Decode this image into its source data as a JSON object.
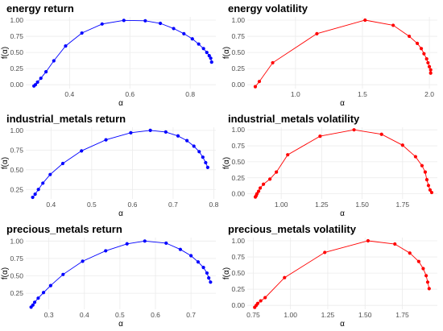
{
  "chart_data": [
    {
      "type": "line",
      "title": "energy return",
      "xlabel": "α",
      "ylabel": "f(α)",
      "color": "#0000ff",
      "xlim": [
        0.255,
        0.885
      ],
      "ylim": [
        -0.06,
        1.05
      ],
      "xticks": [
        0.4,
        0.6,
        0.8
      ],
      "xtick_labels": [
        "0.4",
        "0.6",
        "0.8"
      ],
      "yticks": [
        0,
        0.25,
        0.5,
        0.75,
        1.0
      ],
      "ytick_labels": [
        "0.00",
        "0.25",
        "0.50",
        "0.75",
        "1.00"
      ],
      "x": [
        0.282,
        0.287,
        0.294,
        0.305,
        0.322,
        0.348,
        0.387,
        0.441,
        0.508,
        0.58,
        0.651,
        0.701,
        0.745,
        0.779,
        0.807,
        0.828,
        0.844,
        0.855,
        0.863,
        0.868,
        0.871
      ],
      "y": [
        -0.02,
        0.0,
        0.04,
        0.1,
        0.2,
        0.37,
        0.6,
        0.8,
        0.94,
        0.996,
        0.99,
        0.95,
        0.87,
        0.79,
        0.71,
        0.63,
        0.56,
        0.5,
        0.45,
        0.41,
        0.35
      ]
    },
    {
      "type": "line",
      "title": "energy volatility",
      "xlabel": "α",
      "ylabel": "f(α)",
      "color": "#ff0000",
      "xlim": [
        0.64,
        2.06
      ],
      "ylim": [
        -0.06,
        1.05
      ],
      "xticks": [
        1.0,
        1.5,
        2.0
      ],
      "xtick_labels": [
        "1.0",
        "1.5",
        "2.0"
      ],
      "yticks": [
        0,
        0.25,
        0.5,
        0.75,
        1.0
      ],
      "ytick_labels": [
        "0.00",
        "0.25",
        "0.50",
        "0.75",
        "1.00"
      ],
      "x": [
        0.7,
        0.73,
        0.83,
        1.16,
        1.52,
        1.73,
        1.85,
        1.91,
        1.94,
        1.96,
        1.98,
        1.99,
        2.0,
        2.01,
        2.01
      ],
      "y": [
        -0.03,
        0.05,
        0.34,
        0.79,
        1.0,
        0.92,
        0.75,
        0.64,
        0.56,
        0.48,
        0.4,
        0.34,
        0.28,
        0.23,
        0.18
      ]
    },
    {
      "type": "line",
      "title": "industrial_metals return",
      "xlabel": "α",
      "ylabel": "f(α)",
      "color": "#0000ff",
      "xlim": [
        0.338,
        0.805
      ],
      "ylim": [
        0.13,
        1.04
      ],
      "xticks": [
        0.4,
        0.5,
        0.6,
        0.7,
        0.8
      ],
      "xtick_labels": [
        "0.4",
        "0.5",
        "0.6",
        "0.7",
        "0.8"
      ],
      "yticks": [
        0.25,
        0.5,
        0.75,
        1.0
      ],
      "ytick_labels": [
        "0.25",
        "0.50",
        "0.75",
        "1.00"
      ],
      "x": [
        0.355,
        0.361,
        0.369,
        0.38,
        0.398,
        0.429,
        0.475,
        0.535,
        0.596,
        0.644,
        0.682,
        0.712,
        0.734,
        0.751,
        0.764,
        0.773,
        0.78,
        0.785
      ],
      "y": [
        0.15,
        0.19,
        0.25,
        0.33,
        0.44,
        0.58,
        0.74,
        0.88,
        0.97,
        1.0,
        0.98,
        0.93,
        0.87,
        0.8,
        0.73,
        0.66,
        0.59,
        0.53
      ]
    },
    {
      "type": "line",
      "title": "industrial_metals volatility",
      "xlabel": "α",
      "ylabel": "f(α)",
      "color": "#ff0000",
      "xlim": [
        0.79,
        1.965
      ],
      "ylim": [
        -0.08,
        1.04
      ],
      "xticks": [
        1.0,
        1.25,
        1.5,
        1.75
      ],
      "xtick_labels": [
        "1.00",
        "1.25",
        "1.50",
        "1.75"
      ],
      "yticks": [
        0,
        0.25,
        0.5,
        0.75,
        1.0
      ],
      "ytick_labels": [
        "0.00",
        "0.25",
        "0.50",
        "0.75",
        "1.00"
      ],
      "x": [
        0.84,
        0.845,
        0.85,
        0.86,
        0.87,
        0.89,
        0.93,
        0.97,
        1.04,
        1.24,
        1.45,
        1.62,
        1.75,
        1.83,
        1.87,
        1.89,
        1.9,
        1.91,
        1.92,
        1.93
      ],
      "y": [
        -0.05,
        -0.03,
        0.0,
        0.04,
        0.09,
        0.15,
        0.23,
        0.34,
        0.61,
        0.9,
        1.0,
        0.93,
        0.76,
        0.58,
        0.44,
        0.34,
        0.22,
        0.13,
        0.06,
        0.02
      ]
    },
    {
      "type": "line",
      "title": "precious_metals return",
      "xlabel": "α",
      "ylabel": "f(α)",
      "color": "#0000ff",
      "xlim": [
        0.235,
        0.77
      ],
      "ylim": [
        0.02,
        1.05
      ],
      "xticks": [
        0.3,
        0.4,
        0.5,
        0.6,
        0.7
      ],
      "xtick_labels": [
        "0.3",
        "0.4",
        "0.5",
        "0.6",
        "0.7"
      ],
      "yticks": [
        0.25,
        0.5,
        0.75,
        1.0
      ],
      "ytick_labels": [
        "0.25",
        "0.50",
        "0.75",
        "1.00"
      ],
      "x": [
        0.25,
        0.255,
        0.26,
        0.27,
        0.285,
        0.305,
        0.34,
        0.395,
        0.46,
        0.52,
        0.57,
        0.63,
        0.67,
        0.7,
        0.72,
        0.735,
        0.745,
        0.75,
        0.755
      ],
      "y": [
        0.05,
        0.08,
        0.12,
        0.18,
        0.26,
        0.36,
        0.52,
        0.71,
        0.86,
        0.96,
        1.0,
        0.97,
        0.88,
        0.79,
        0.7,
        0.62,
        0.54,
        0.47,
        0.41
      ]
    },
    {
      "type": "line",
      "title": "precious_metals volatility",
      "xlabel": "α",
      "ylabel": "f(α)",
      "color": "#ff0000",
      "xlim": [
        0.71,
        1.985
      ],
      "ylim": [
        -0.06,
        1.05
      ],
      "xticks": [
        0.75,
        1.0,
        1.25,
        1.5,
        1.75
      ],
      "xtick_labels": [
        "0.75",
        "1.00",
        "1.25",
        "1.50",
        "1.75"
      ],
      "yticks": [
        0,
        0.25,
        0.5,
        0.75,
        1.0
      ],
      "ytick_labels": [
        "0.00",
        "0.25",
        "0.50",
        "0.75",
        "1.00"
      ],
      "x": [
        0.76,
        0.77,
        0.78,
        0.8,
        0.83,
        0.96,
        1.23,
        1.52,
        1.7,
        1.8,
        1.86,
        1.89,
        1.91,
        1.92,
        1.93
      ],
      "y": [
        -0.03,
        0.0,
        0.03,
        0.07,
        0.12,
        0.43,
        0.82,
        1.0,
        0.95,
        0.81,
        0.68,
        0.57,
        0.46,
        0.36,
        0.26
      ]
    }
  ]
}
